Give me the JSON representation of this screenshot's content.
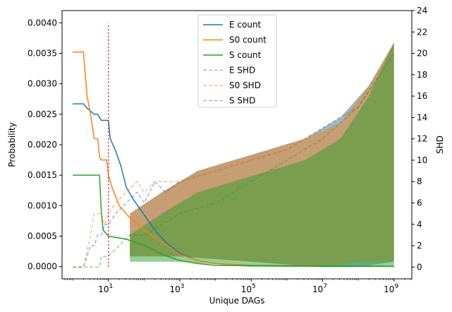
{
  "chart_data": {
    "type": "line",
    "xlabel": "Unique DAGs",
    "ylabel_left": "Probability",
    "ylabel_right": "SHD",
    "x_scale": "log",
    "xlim_log10": [
      -0.3,
      9.5
    ],
    "ylim_left": [
      -0.0002,
      0.0042
    ],
    "ylim_right": [
      -1.1,
      24
    ],
    "x_ticks": [
      {
        "exp": 1,
        "label": "10",
        "sup": "1"
      },
      {
        "exp": 3,
        "label": "10",
        "sup": "3"
      },
      {
        "exp": 5,
        "label": "10",
        "sup": "5"
      },
      {
        "exp": 7,
        "label": "10",
        "sup": "7"
      },
      {
        "exp": 9,
        "label": "10",
        "sup": "9"
      }
    ],
    "y_ticks_left": [
      {
        "value": 0.0,
        "label": "0.0000"
      },
      {
        "value": 0.0005,
        "label": "0.0005"
      },
      {
        "value": 0.001,
        "label": "0.0010"
      },
      {
        "value": 0.0015,
        "label": "0.0015"
      },
      {
        "value": 0.002,
        "label": "0.0020"
      },
      {
        "value": 0.0025,
        "label": "0.0025"
      },
      {
        "value": 0.003,
        "label": "0.0030"
      },
      {
        "value": 0.0035,
        "label": "0.0035"
      },
      {
        "value": 0.004,
        "label": "0.0040"
      }
    ],
    "y_ticks_right": [
      {
        "value": 0,
        "label": "0"
      },
      {
        "value": 2,
        "label": "2"
      },
      {
        "value": 4,
        "label": "4"
      },
      {
        "value": 6,
        "label": "6"
      },
      {
        "value": 8,
        "label": "8"
      },
      {
        "value": 10,
        "label": "10"
      },
      {
        "value": 12,
        "label": "12"
      },
      {
        "value": 14,
        "label": "14"
      },
      {
        "value": 16,
        "label": "16"
      },
      {
        "value": 18,
        "label": "18"
      },
      {
        "value": 20,
        "label": "20"
      },
      {
        "value": 22,
        "label": "22"
      },
      {
        "value": 24,
        "label": "24"
      }
    ],
    "reference_line": {
      "x_log10": 1,
      "y_top": 0.004,
      "color": "#d62728"
    },
    "series": [
      {
        "name": "E count",
        "axis": "left",
        "style": "solid",
        "color": "#1f77b4",
        "points": [
          [
            0,
            0.00267
          ],
          [
            0.3,
            0.00267
          ],
          [
            0.4,
            0.0026
          ],
          [
            0.6,
            0.0025
          ],
          [
            0.7,
            0.0025
          ],
          [
            0.8,
            0.0024
          ],
          [
            1.0,
            0.0024
          ],
          [
            1.05,
            0.0021
          ],
          [
            1.2,
            0.0019
          ],
          [
            1.35,
            0.00165
          ],
          [
            1.5,
            0.0013
          ],
          [
            1.7,
            0.0011
          ],
          [
            2.0,
            0.00085
          ],
          [
            2.3,
            0.0006
          ],
          [
            2.6,
            0.0004
          ],
          [
            3.0,
            0.00022
          ],
          [
            3.5,
            0.0001
          ],
          [
            4.0,
            5e-05
          ],
          [
            5.0,
            2e-05
          ],
          [
            6.0,
            1e-05
          ],
          [
            9.0,
            5e-06
          ]
        ]
      },
      {
        "name": "S0 count",
        "axis": "left",
        "style": "solid",
        "color": "#ff7f0e",
        "points": [
          [
            0,
            0.00352
          ],
          [
            0.3,
            0.00352
          ],
          [
            0.4,
            0.0028
          ],
          [
            0.5,
            0.0025
          ],
          [
            0.6,
            0.0021
          ],
          [
            0.7,
            0.0021
          ],
          [
            0.75,
            0.0018
          ],
          [
            0.8,
            0.00175
          ],
          [
            0.95,
            0.00175
          ],
          [
            1.0,
            0.0015
          ],
          [
            1.1,
            0.0013
          ],
          [
            1.3,
            0.001
          ],
          [
            1.6,
            0.0008
          ],
          [
            2.0,
            0.0006
          ],
          [
            2.5,
            0.0004
          ],
          [
            3.0,
            0.0002
          ],
          [
            3.5,
            0.0001
          ],
          [
            4.0,
            5e-05
          ],
          [
            5.0,
            2e-05
          ],
          [
            9.0,
            5e-06
          ]
        ]
      },
      {
        "name": "S count",
        "axis": "left",
        "style": "solid",
        "color": "#2ca02c",
        "points": [
          [
            0,
            0.0015
          ],
          [
            0.75,
            0.0015
          ],
          [
            0.8,
            0.0009
          ],
          [
            0.85,
            0.0006
          ],
          [
            1.0,
            0.0005
          ],
          [
            1.5,
            0.00045
          ],
          [
            2.0,
            0.00035
          ],
          [
            2.5,
            0.0002
          ],
          [
            3.0,
            0.0001
          ],
          [
            3.5,
            5e-05
          ],
          [
            4.0,
            2e-05
          ],
          [
            9.0,
            5e-06
          ]
        ]
      },
      {
        "name": "E SHD",
        "axis": "right",
        "style": "dashed",
        "color": "#1f77b4",
        "opacity": 0.5,
        "points": [
          [
            0,
            0
          ],
          [
            0.3,
            0
          ],
          [
            0.5,
            2
          ],
          [
            0.6,
            2
          ],
          [
            0.7,
            3
          ],
          [
            0.8,
            3
          ],
          [
            0.9,
            4
          ],
          [
            1.0,
            4
          ],
          [
            1.2,
            5
          ],
          [
            1.5,
            6
          ],
          [
            1.8,
            7
          ],
          [
            2.0,
            6
          ],
          [
            2.3,
            8
          ],
          [
            2.6,
            7
          ],
          [
            3.0,
            8
          ],
          [
            4.0,
            9
          ],
          [
            5.0,
            10
          ],
          [
            6.0,
            11
          ],
          [
            7.0,
            13
          ],
          [
            8.0,
            15
          ],
          [
            9.0,
            20
          ]
        ]
      },
      {
        "name": "S0 SHD",
        "axis": "right",
        "style": "dashed",
        "color": "#ff7f0e",
        "opacity": 0.5,
        "points": [
          [
            0,
            0
          ],
          [
            0.3,
            0
          ],
          [
            0.5,
            3
          ],
          [
            0.6,
            5
          ],
          [
            0.8,
            5
          ],
          [
            0.9,
            4
          ],
          [
            1.0,
            5
          ],
          [
            1.2,
            6
          ],
          [
            1.5,
            7
          ],
          [
            1.8,
            8
          ],
          [
            2.0,
            7
          ],
          [
            2.3,
            8
          ],
          [
            2.6,
            8
          ],
          [
            3.0,
            8
          ],
          [
            4.0,
            9
          ],
          [
            5.0,
            10
          ],
          [
            6.0,
            11
          ],
          [
            7.0,
            13
          ],
          [
            8.0,
            15
          ],
          [
            9.0,
            20
          ]
        ]
      },
      {
        "name": "S SHD",
        "axis": "right",
        "style": "dashed",
        "color": "#2ca02c",
        "opacity": 0.5,
        "points": [
          [
            0,
            0
          ],
          [
            0.75,
            0
          ],
          [
            0.8,
            1
          ],
          [
            1.0,
            1
          ],
          [
            1.3,
            2
          ],
          [
            1.6,
            3
          ],
          [
            2.0,
            3
          ],
          [
            2.5,
            4
          ],
          [
            3.0,
            5
          ],
          [
            4.0,
            6
          ],
          [
            5.0,
            8
          ],
          [
            6.0,
            10
          ],
          [
            7.0,
            12
          ],
          [
            8.0,
            15
          ],
          [
            9.0,
            20
          ]
        ]
      }
    ],
    "bands": [
      {
        "name": "E SHD band",
        "color": "#1f77b4",
        "opacity": 0.5,
        "upper": [
          [
            1.6,
            5
          ],
          [
            2.5,
            7
          ],
          [
            3.5,
            9
          ],
          [
            4.5,
            10
          ],
          [
            5.5,
            11
          ],
          [
            6.5,
            12
          ],
          [
            7.5,
            14
          ],
          [
            8.3,
            17
          ],
          [
            9.0,
            21
          ]
        ],
        "lower": [
          [
            1.6,
            1
          ],
          [
            3.0,
            1
          ],
          [
            5.0,
            0.5
          ],
          [
            7.0,
            0
          ],
          [
            8.0,
            0
          ],
          [
            9.0,
            0.5
          ]
        ]
      },
      {
        "name": "S0 SHD band",
        "color": "#ff7f0e",
        "opacity": 0.5,
        "upper": [
          [
            1.6,
            5
          ],
          [
            2.5,
            7
          ],
          [
            3.5,
            9
          ],
          [
            4.5,
            10
          ],
          [
            5.5,
            11
          ],
          [
            6.5,
            12
          ],
          [
            7.5,
            13.5
          ],
          [
            8.3,
            17
          ],
          [
            9.0,
            21
          ]
        ],
        "lower": [
          [
            1.6,
            1
          ],
          [
            3.0,
            1
          ],
          [
            5.0,
            0.5
          ],
          [
            7.0,
            0
          ],
          [
            8.0,
            0.5
          ],
          [
            9.0,
            0.5
          ]
        ]
      },
      {
        "name": "S SHD band",
        "color": "#2ca02c",
        "opacity": 0.5,
        "upper": [
          [
            1.6,
            3
          ],
          [
            2.5,
            5
          ],
          [
            3.5,
            7
          ],
          [
            4.5,
            8
          ],
          [
            5.5,
            9
          ],
          [
            6.5,
            10
          ],
          [
            7.5,
            12
          ],
          [
            8.3,
            16
          ],
          [
            9.0,
            21
          ]
        ],
        "lower": [
          [
            1.6,
            0.5
          ],
          [
            3.0,
            0.5
          ],
          [
            5.0,
            0
          ],
          [
            7.0,
            0
          ],
          [
            9.0,
            0
          ]
        ]
      }
    ],
    "legend": {
      "position": "top-center",
      "entries": [
        {
          "label": "E count",
          "color": "#1f77b4",
          "style": "solid"
        },
        {
          "label": "S0 count",
          "color": "#ff7f0e",
          "style": "solid"
        },
        {
          "label": "S count",
          "color": "#2ca02c",
          "style": "solid"
        },
        {
          "label": "E SHD",
          "color": "#1f77b4",
          "style": "dashed"
        },
        {
          "label": "S0 SHD",
          "color": "#ff7f0e",
          "style": "dashed"
        },
        {
          "label": "S SHD",
          "color": "#2ca02c",
          "style": "dashed"
        }
      ]
    }
  }
}
